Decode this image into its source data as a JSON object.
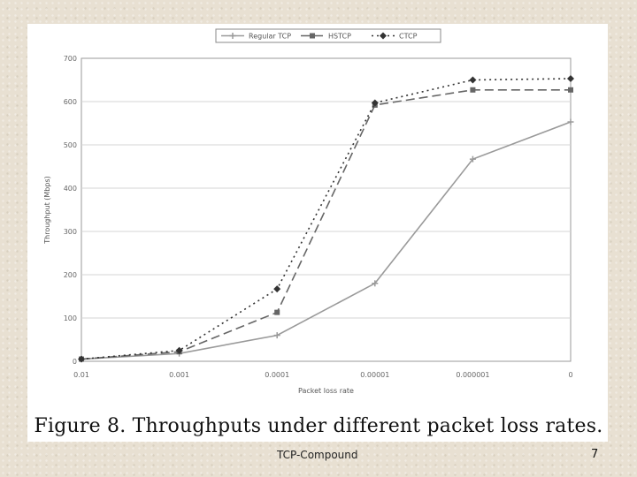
{
  "slide": {
    "caption": "Figure 8. Throughputs under different packet loss rates.",
    "footer": "TCP-Compound",
    "page_number": "7"
  },
  "chart_data": {
    "type": "line",
    "xlabel": "Packet loss rate",
    "ylabel": "Throughput (Mbps)",
    "categories": [
      "0.01",
      "0.001",
      "0.0001",
      "0.00001",
      "0.000001",
      "0"
    ],
    "ylim": [
      0,
      700
    ],
    "yticks": [
      0,
      100,
      200,
      300,
      400,
      500,
      600,
      700
    ],
    "grid": true,
    "legend_position": "top",
    "series": [
      {
        "name": "Regular TCP",
        "values": [
          5,
          18,
          60,
          180,
          467,
          553
        ],
        "color": "#9a9a9a",
        "dash": "",
        "marker": "tick"
      },
      {
        "name": "HSTCP",
        "values": [
          5,
          22,
          113,
          592,
          627,
          627
        ],
        "color": "#666666",
        "dash": "10,5",
        "marker": "square"
      },
      {
        "name": "CTCP",
        "values": [
          5,
          25,
          167,
          597,
          650,
          653
        ],
        "color": "#333333",
        "dash": "2,4",
        "marker": "diamond"
      }
    ]
  }
}
